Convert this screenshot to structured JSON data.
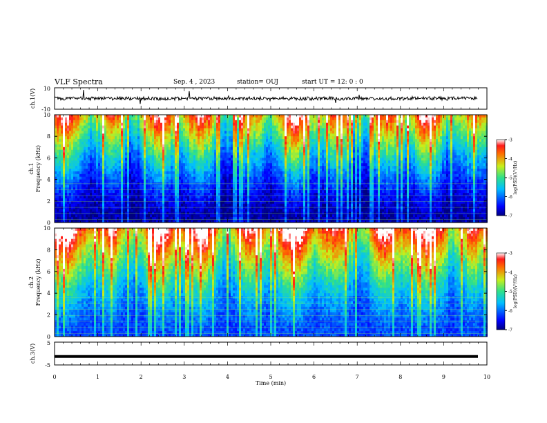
{
  "header": {
    "title": "VLF Spectra",
    "date": "Sep. 4 , 2023",
    "station": "station= OUJ",
    "start": "start  UT =   12: 0  : 0"
  },
  "chart_data": [
    {
      "type": "line",
      "panel": "ch1-waveform",
      "ylabel": "ch.1(V)",
      "ylim": [
        -10,
        10
      ],
      "yticks": [
        "10",
        "-10"
      ],
      "xlim": [
        0,
        10
      ],
      "series": [
        {
          "values_note": "",
          "level": 0
        }
      ],
      "color": "#000000"
    },
    {
      "type": "heatmap",
      "panel": "ch1-spectrogram",
      "ylabel": "ch.1\nFrequency  (kHz)",
      "ylabel_line1": "ch.1",
      "ylabel_line2": "Frequency  (kHz)",
      "ylim": [
        0,
        10
      ],
      "yticks": [
        "0",
        "2",
        "4",
        "6",
        "8",
        "10"
      ],
      "xlim": [
        0,
        10
      ],
      "colorbar": {
        "label": "log(PSD)(V²/Hz)",
        "range": [
          -7,
          -3
        ],
        "ticks": [
          "-3",
          "-4",
          "-5",
          "-6",
          "-7"
        ]
      }
    },
    {
      "type": "heatmap",
      "panel": "ch2-spectrogram",
      "ylabel_line1": "ch.2",
      "ylabel_line2": "Frequency  (kHz)",
      "ylim": [
        0,
        10
      ],
      "yticks": [
        "0",
        "2",
        "4",
        "6",
        "8",
        "10"
      ],
      "xlim": [
        0,
        10
      ],
      "colorbar": {
        "label": "log(PSD)(V²/Hz)",
        "range": [
          -7,
          -3
        ],
        "ticks": [
          "-3",
          "-4",
          "-5",
          "-6",
          "-7"
        ]
      }
    },
    {
      "type": "line",
      "panel": "ch3-waveform",
      "ylabel": "ch.3(V)",
      "ylim": [
        -5,
        5
      ],
      "yticks": [
        "5",
        "-5"
      ],
      "xlim": [
        0,
        10
      ],
      "series": [
        {
          "level": -1.3
        }
      ],
      "xlabel": "Time  (min)",
      "xticks": [
        "0",
        "1",
        "2",
        "3",
        "4",
        "5",
        "6",
        "7",
        "8",
        "9",
        "10"
      ]
    }
  ],
  "labels": {
    "ch1_v": "ch.1(V)",
    "ch3_v": "ch.3(V)",
    "ch1_freq_a": "ch.1",
    "ch1_freq_b": "Frequency  (kHz)",
    "ch2_freq_a": "ch.2",
    "ch2_freq_b": "Frequency  (kHz)",
    "cbar_label": "log(PSD)(V²/Hz)",
    "xlabel": "Time  (min)",
    "ch1_top": "10",
    "ch1_bot": "-10",
    "ch3_top": "5",
    "ch3_bot": "-5"
  }
}
